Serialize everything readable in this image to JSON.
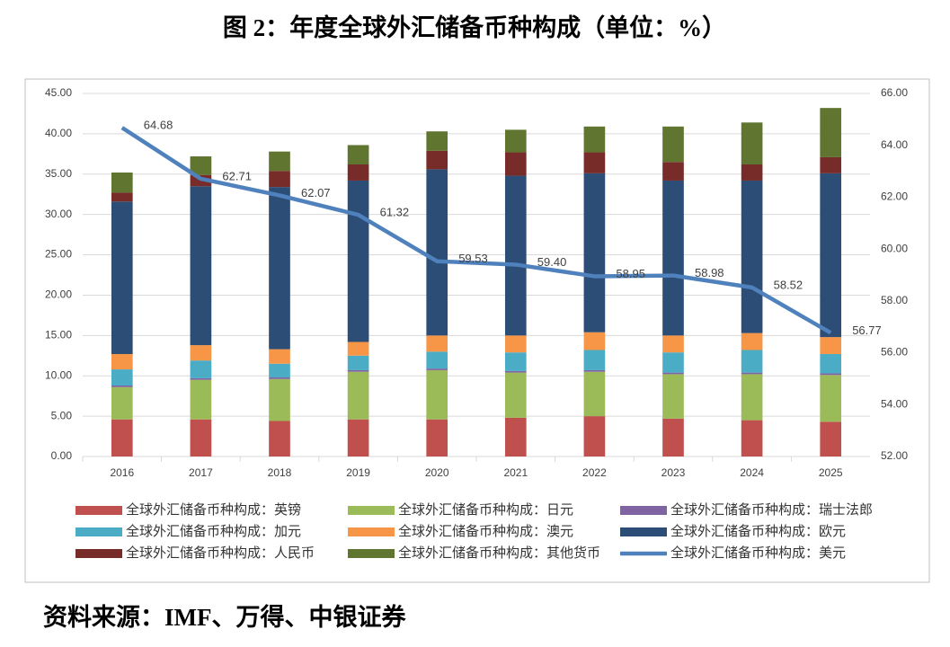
{
  "chart_data": {
    "type": "bar",
    "stacked": true,
    "title": "图 2：年度全球外汇储备币种构成（单位：%）",
    "source": "资料来源：IMF、万得、中银证券",
    "categories": [
      "2016",
      "2017",
      "2018",
      "2019",
      "2020",
      "2021",
      "2022",
      "2023",
      "2024",
      "2025"
    ],
    "ylim": [
      0,
      45
    ],
    "yticks": [
      {
        "value": 0,
        "label": "0.00"
      },
      {
        "value": 5,
        "label": "5.00"
      },
      {
        "value": 10,
        "label": "10.00"
      },
      {
        "value": 15,
        "label": "15.00"
      },
      {
        "value": 20,
        "label": "20.00"
      },
      {
        "value": 25,
        "label": "25.00"
      },
      {
        "value": 30,
        "label": "30.00"
      },
      {
        "value": 35,
        "label": "35.00"
      },
      {
        "value": 40,
        "label": "40.00"
      },
      {
        "value": 45,
        "label": "45.00"
      }
    ],
    "y2lim": [
      52,
      66
    ],
    "y2ticks": [
      {
        "value": 52,
        "label": "52.00"
      },
      {
        "value": 54,
        "label": "54.00"
      },
      {
        "value": 56,
        "label": "56.00"
      },
      {
        "value": 58,
        "label": "58.00"
      },
      {
        "value": 60,
        "label": "60.00"
      },
      {
        "value": 62,
        "label": "62.00"
      },
      {
        "value": 64,
        "label": "64.00"
      },
      {
        "value": 66,
        "label": "66.00"
      }
    ],
    "legend": "bottom",
    "series": [
      {
        "name": "全球外汇储备币种构成：英镑",
        "color": "#c0504d",
        "values": [
          4.6,
          4.6,
          4.4,
          4.6,
          4.6,
          4.8,
          5.0,
          4.7,
          4.5,
          4.3
        ]
      },
      {
        "name": "全球外汇储备币种构成：日元",
        "color": "#9bbb59",
        "values": [
          4.0,
          4.9,
          5.2,
          5.9,
          6.1,
          5.6,
          5.5,
          5.5,
          5.7,
          5.8
        ]
      },
      {
        "name": "全球外汇储备币种构成：瑞士法郎",
        "color": "#8064a2",
        "values": [
          0.2,
          0.2,
          0.2,
          0.2,
          0.2,
          0.2,
          0.2,
          0.2,
          0.2,
          0.2
        ]
      },
      {
        "name": "全球外汇储备币种构成：加元",
        "color": "#4bacc6",
        "values": [
          2.0,
          2.2,
          1.7,
          1.8,
          2.1,
          2.3,
          2.5,
          2.5,
          2.8,
          2.4
        ]
      },
      {
        "name": "全球外汇储备币种构成：澳元",
        "color": "#f79646",
        "values": [
          1.9,
          1.9,
          1.8,
          1.7,
          2.0,
          2.1,
          2.2,
          2.1,
          2.1,
          2.1
        ]
      },
      {
        "name": "全球外汇储备币种构成：欧元",
        "color": "#2c4d75",
        "values": [
          18.9,
          19.7,
          20.1,
          20.0,
          20.6,
          19.8,
          19.7,
          19.2,
          18.9,
          20.3
        ]
      },
      {
        "name": "全球外汇储备币种构成：人民币",
        "color": "#772c2a",
        "values": [
          1.1,
          1.4,
          2.0,
          2.0,
          2.3,
          2.9,
          2.6,
          2.3,
          2.0,
          2.0
        ]
      },
      {
        "name": "全球外汇储备币种构成：其他货币",
        "color": "#5f7530",
        "values": [
          2.5,
          2.3,
          2.4,
          2.4,
          2.4,
          2.8,
          3.2,
          4.4,
          5.2,
          6.1
        ]
      },
      {
        "name": "全球外汇储备币种构成：美元",
        "color": "#4f81bd",
        "type": "line",
        "axis": "y2",
        "values": [
          64.68,
          62.71,
          62.07,
          61.32,
          59.53,
          59.4,
          58.95,
          58.98,
          58.52,
          56.77
        ],
        "value_labels": [
          "64.68",
          "62.71",
          "62.07",
          "61.32",
          "59.53",
          "59.40",
          "58.95",
          "58.98",
          "58.52",
          "56.77"
        ]
      }
    ]
  }
}
